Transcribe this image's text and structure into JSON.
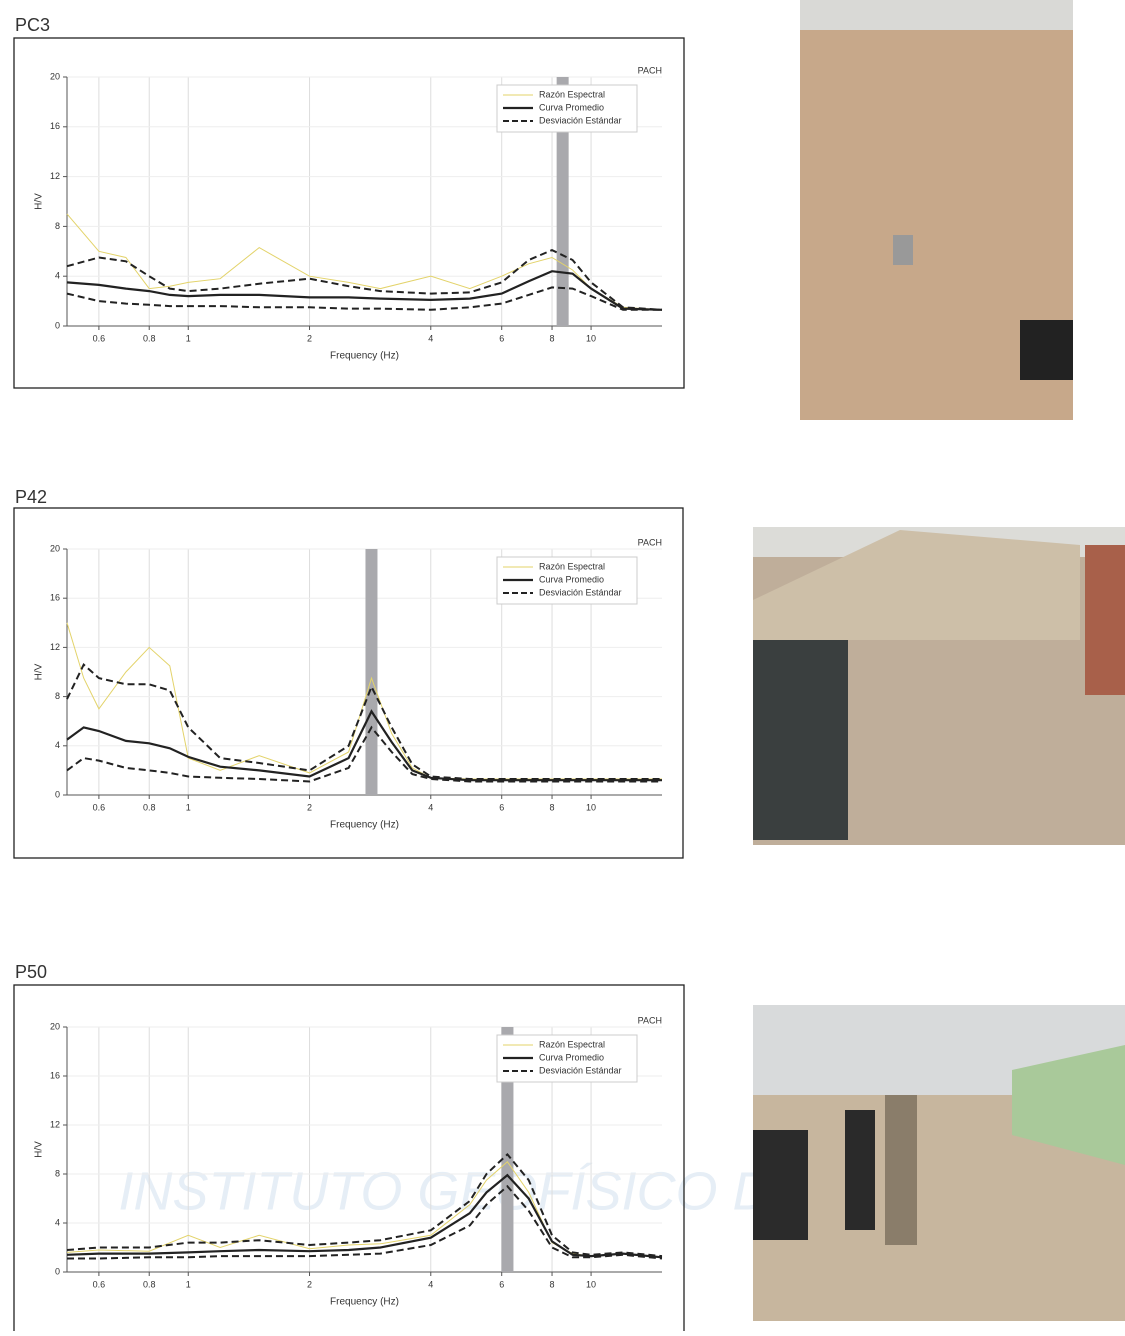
{
  "watermark": "INSTITUTO GEOFÍSICO DEL PERÚ",
  "chart_data": [
    {
      "type": "line",
      "title": "PC3",
      "annotation": "PACH",
      "x_label": "Frequency (Hz)",
      "y_label": "H/V",
      "x_log": true,
      "grid": true,
      "xlim": [
        0.5,
        15
      ],
      "xticks": [
        0.6,
        0.8,
        1,
        2,
        4,
        6,
        8,
        10
      ],
      "ylim": [
        0,
        20
      ],
      "yticks": [
        0,
        4,
        8,
        12,
        16,
        20
      ],
      "peak_frequency": 8.5,
      "legend": "upper-right",
      "x": [
        0.5,
        0.6,
        0.7,
        0.8,
        0.9,
        1,
        1.2,
        1.5,
        2,
        2.5,
        3,
        4,
        5,
        6,
        7,
        8,
        9,
        10,
        12,
        15
      ],
      "series": [
        {
          "name": "Razón Espectral",
          "color": "#e3d36a",
          "width": 1,
          "dash": false,
          "values": [
            9,
            6,
            5.5,
            3,
            3.2,
            3.5,
            3.8,
            6.3,
            4,
            3.5,
            3,
            4,
            3,
            4,
            5,
            5.5,
            4.5,
            3,
            1.5,
            1.3
          ]
        },
        {
          "name": "Curva Promedio",
          "color": "#222222",
          "width": 2.2,
          "dash": false,
          "values": [
            3.5,
            3.3,
            3,
            2.8,
            2.5,
            2.4,
            2.5,
            2.5,
            2.3,
            2.3,
            2.2,
            2.1,
            2.2,
            2.6,
            3.6,
            4.4,
            4.2,
            3,
            1.4,
            1.3
          ]
        },
        {
          "name": "Desviación Estándar",
          "color": "#222222",
          "width": 2,
          "dash": true,
          "values": [
            4.8,
            5.5,
            5.2,
            4,
            3,
            2.8,
            3,
            3.4,
            3.8,
            3.2,
            2.8,
            2.6,
            2.7,
            3.5,
            5.3,
            6.1,
            5.3,
            3.5,
            1.5,
            1.3
          ]
        },
        {
          "name": "Desviación Estándar",
          "color": "#222222",
          "width": 2,
          "dash": true,
          "values": [
            2.6,
            2,
            1.8,
            1.7,
            1.6,
            1.6,
            1.6,
            1.5,
            1.5,
            1.4,
            1.4,
            1.3,
            1.5,
            1.8,
            2.5,
            3.1,
            3,
            2.4,
            1.3,
            1.3
          ]
        }
      ]
    },
    {
      "type": "line",
      "title": "P42",
      "annotation": "PACH",
      "x_label": "Frequency (Hz)",
      "y_label": "H/V",
      "x_log": true,
      "grid": true,
      "xlim": [
        0.5,
        15
      ],
      "xticks": [
        0.6,
        0.8,
        1,
        2,
        4,
        6,
        8,
        10
      ],
      "ylim": [
        0,
        20
      ],
      "yticks": [
        0,
        4,
        8,
        12,
        16,
        20
      ],
      "peak_frequency": 2.85,
      "legend": "upper-right",
      "x": [
        0.5,
        0.55,
        0.6,
        0.7,
        0.8,
        0.9,
        1,
        1.2,
        1.5,
        2,
        2.5,
        2.85,
        3.2,
        3.6,
        4,
        5,
        6,
        8,
        10,
        15
      ],
      "series": [
        {
          "name": "Razón Espectral",
          "color": "#e3d36a",
          "width": 1,
          "dash": false,
          "values": [
            14,
            9.5,
            7,
            10,
            12,
            10.5,
            3,
            2,
            3.2,
            1.8,
            3.5,
            9.5,
            5,
            2.2,
            1.4,
            1.3,
            1.3,
            1.3,
            1.3,
            1.3
          ]
        },
        {
          "name": "Curva Promedio",
          "color": "#222222",
          "width": 2.2,
          "dash": false,
          "values": [
            4.5,
            5.5,
            5.2,
            4.4,
            4.2,
            3.8,
            3.1,
            2.3,
            2,
            1.5,
            3,
            6.8,
            4.3,
            2,
            1.4,
            1.2,
            1.2,
            1.2,
            1.2,
            1.2
          ]
        },
        {
          "name": "Desviación Estándar",
          "color": "#222222",
          "width": 2,
          "dash": true,
          "values": [
            7.8,
            10.6,
            9.5,
            9,
            9,
            8.5,
            5.5,
            3,
            2.6,
            2,
            4,
            8.8,
            5.5,
            2.5,
            1.5,
            1.3,
            1.3,
            1.3,
            1.3,
            1.3
          ]
        },
        {
          "name": "Desviación Estándar",
          "color": "#222222",
          "width": 2,
          "dash": true,
          "values": [
            2,
            3,
            2.8,
            2.2,
            2,
            1.8,
            1.5,
            1.4,
            1.3,
            1.1,
            2.2,
            5.5,
            3.5,
            1.7,
            1.3,
            1.1,
            1.1,
            1.1,
            1.1,
            1.1
          ]
        }
      ]
    },
    {
      "type": "line",
      "title": "P50",
      "annotation": "PACH",
      "x_label": "Frequency (Hz)",
      "y_label": "H/V",
      "x_log": true,
      "grid": true,
      "xlim": [
        0.5,
        15
      ],
      "xticks": [
        0.6,
        0.8,
        1,
        2,
        4,
        6,
        8,
        10
      ],
      "ylim": [
        0,
        20
      ],
      "yticks": [
        0,
        4,
        8,
        12,
        16,
        20
      ],
      "peak_frequency": 6.2,
      "legend": "upper-right",
      "x": [
        0.5,
        0.6,
        0.8,
        1,
        1.2,
        1.5,
        2,
        2.5,
        3,
        4,
        5,
        5.5,
        6.2,
        7,
        8,
        9,
        10,
        12,
        15
      ],
      "series": [
        {
          "name": "Razón Espectral",
          "color": "#e3d36a",
          "width": 1,
          "dash": false,
          "values": [
            1.6,
            1.8,
            1.7,
            3,
            2,
            3,
            1.9,
            2.2,
            2.3,
            3,
            5.5,
            7.5,
            9,
            6.5,
            2.4,
            1.5,
            1.3,
            1.5,
            1.2
          ]
        },
        {
          "name": "Curva Promedio",
          "color": "#222222",
          "width": 2.2,
          "dash": false,
          "values": [
            1.4,
            1.5,
            1.5,
            1.6,
            1.7,
            1.8,
            1.7,
            1.8,
            2,
            2.8,
            4.8,
            6.5,
            7.9,
            6,
            2.5,
            1.4,
            1.3,
            1.5,
            1.2
          ]
        },
        {
          "name": "Desviación Estándar",
          "color": "#222222",
          "width": 2,
          "dash": true,
          "values": [
            1.8,
            2,
            2,
            2.4,
            2.4,
            2.6,
            2.2,
            2.4,
            2.6,
            3.4,
            5.8,
            8,
            9.6,
            7.5,
            3,
            1.6,
            1.4,
            1.6,
            1.3
          ]
        },
        {
          "name": "Desviación Estándar",
          "color": "#222222",
          "width": 2,
          "dash": true,
          "values": [
            1.1,
            1.1,
            1.2,
            1.2,
            1.3,
            1.3,
            1.3,
            1.4,
            1.5,
            2.2,
            3.8,
            5.5,
            7,
            5,
            2,
            1.2,
            1.2,
            1.4,
            1.1
          ]
        }
      ]
    }
  ]
}
